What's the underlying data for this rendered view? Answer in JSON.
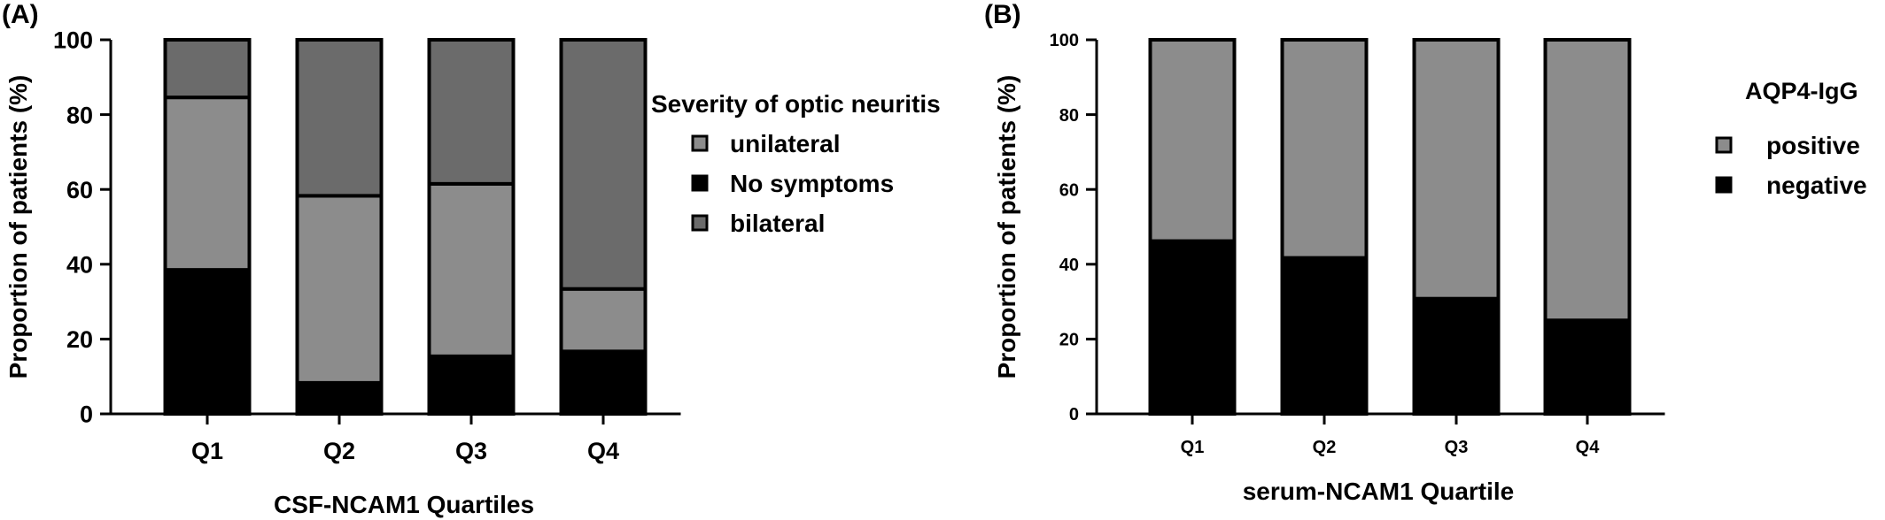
{
  "panels": {
    "a_label": "(A)",
    "b_label": "(B)"
  },
  "colors": {
    "black": "#000000",
    "light_gray": "#8c8c8c",
    "dark_gray": "#6b6b6b",
    "axis": "#000000"
  },
  "chart_data": [
    {
      "type": "bar",
      "stacked": true,
      "percent": true,
      "title": "",
      "xlabel": "CSF-NCAM1 Quartiles",
      "ylabel": "Proportion of patients (%)",
      "ylim": [
        0,
        100
      ],
      "yticks": [
        "0",
        "20",
        "40",
        "60",
        "80",
        "100"
      ],
      "categories": [
        "Q1",
        "Q2",
        "Q3",
        "Q4"
      ],
      "legend_title": "Severity of optic neuritis",
      "legend_position": "right",
      "legend": [
        "unilateral",
        "No symptoms",
        "bilateral"
      ],
      "grid": false,
      "series": [
        {
          "name": "No symptoms",
          "color": "#000000",
          "values": [
            38.5,
            8.3,
            15.4,
            16.7
          ]
        },
        {
          "name": "unilateral",
          "color": "#8c8c8c",
          "values": [
            46.1,
            50.0,
            46.1,
            16.7
          ]
        },
        {
          "name": "bilateral",
          "color": "#6b6b6b",
          "values": [
            15.4,
            41.7,
            38.5,
            66.6
          ]
        }
      ]
    },
    {
      "type": "bar",
      "stacked": true,
      "percent": true,
      "title": "",
      "xlabel": "serum-NCAM1 Quartile",
      "ylabel": "Proportion of patients (%)",
      "ylim": [
        0,
        100
      ],
      "yticks": [
        "0",
        "20",
        "40",
        "60",
        "80",
        "100"
      ],
      "categories": [
        "Q1",
        "Q2",
        "Q3",
        "Q4"
      ],
      "legend_title": "AQP4-IgG",
      "legend_position": "right",
      "legend": [
        "positive",
        "negative"
      ],
      "grid": false,
      "series": [
        {
          "name": "negative",
          "color": "#000000",
          "values": [
            46.2,
            41.7,
            30.8,
            25.0
          ]
        },
        {
          "name": "positive",
          "color": "#8c8c8c",
          "values": [
            53.8,
            58.3,
            69.2,
            75.0
          ]
        }
      ]
    }
  ]
}
